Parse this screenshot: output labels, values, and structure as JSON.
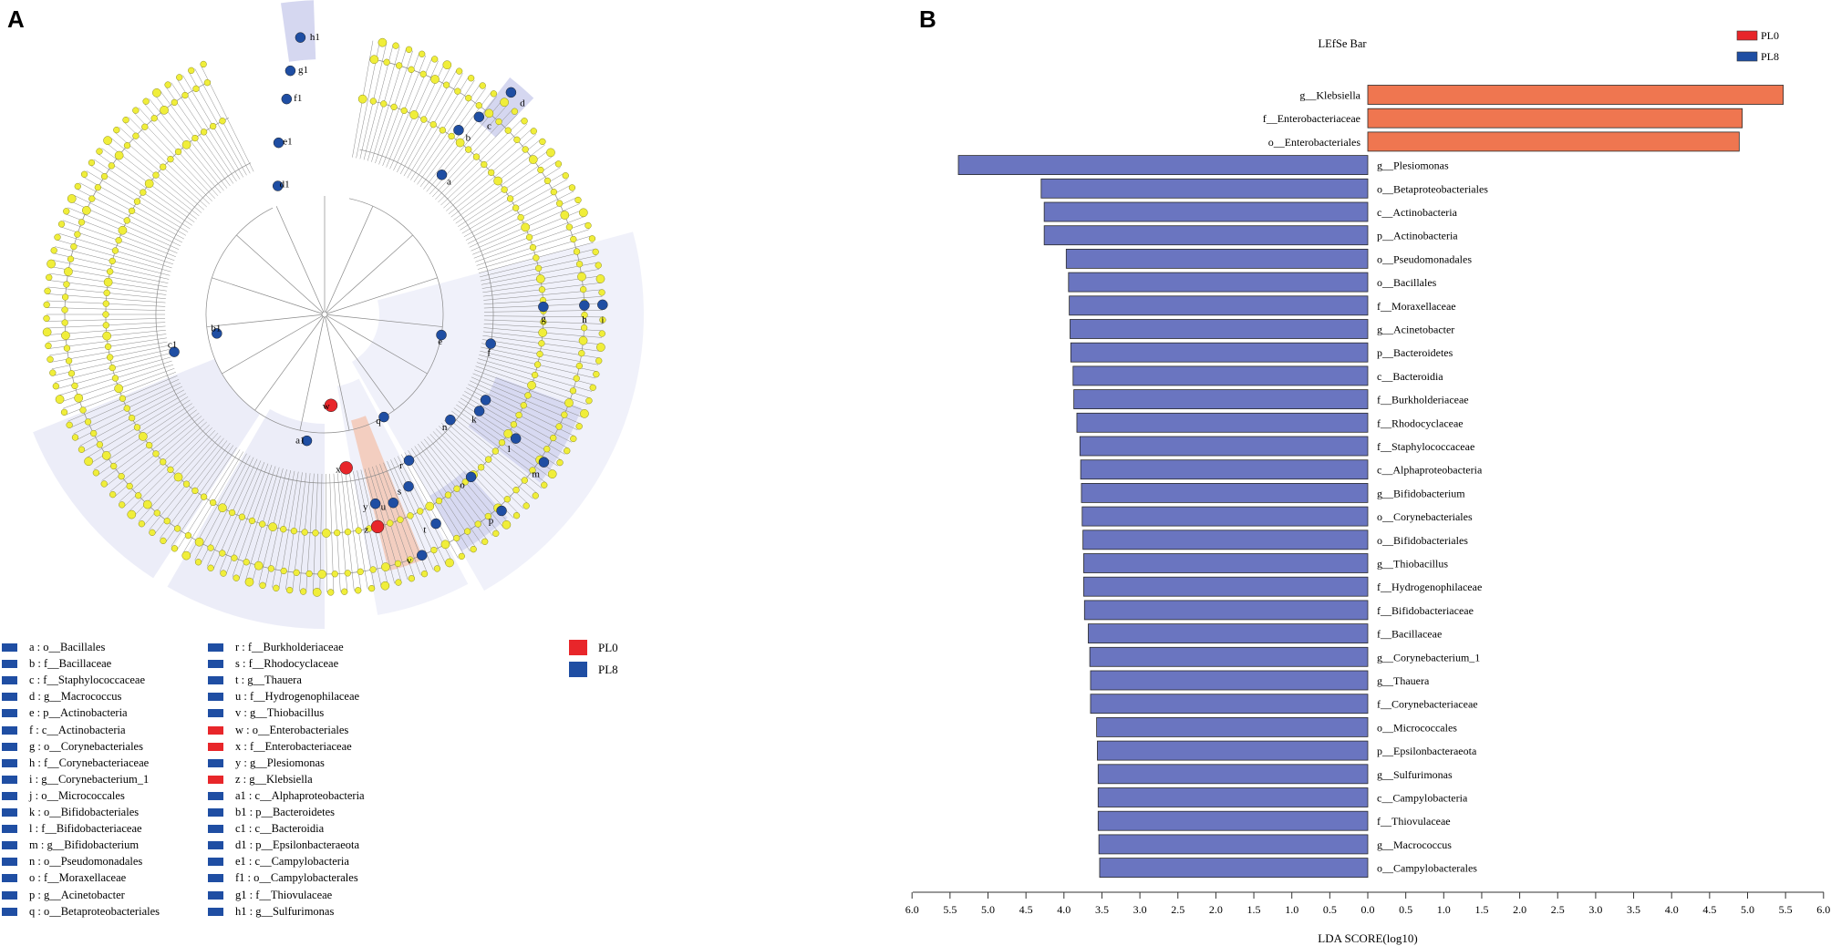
{
  "panel_a_label": "A",
  "panel_b_label": "B",
  "groups": [
    {
      "name": "PL0",
      "color": "#e8262a"
    },
    {
      "name": "PL8",
      "color": "#1f4ea3"
    }
  ],
  "cladogram": {
    "node_colors": {
      "default": "#f0ee3a",
      "PL0": "#e8262a",
      "PL8": "#1f4ea3"
    },
    "marked_nodes": [
      "a",
      "b",
      "c",
      "d",
      "e",
      "f",
      "g",
      "h",
      "i",
      "j",
      "k",
      "l",
      "m",
      "n",
      "o",
      "p",
      "q",
      "r",
      "s",
      "t",
      "u",
      "v",
      "w",
      "x",
      "y",
      "z",
      "a1",
      "b1",
      "c1",
      "d1",
      "e1",
      "f1",
      "g1",
      "h1"
    ]
  },
  "legend": [
    {
      "key": "a",
      "taxon": "o__Bacillales",
      "group": "PL8"
    },
    {
      "key": "b",
      "taxon": "f__Bacillaceae",
      "group": "PL8"
    },
    {
      "key": "c",
      "taxon": "f__Staphylococcaceae",
      "group": "PL8"
    },
    {
      "key": "d",
      "taxon": "g__Macrococcus",
      "group": "PL8"
    },
    {
      "key": "e",
      "taxon": "p__Actinobacteria",
      "group": "PL8"
    },
    {
      "key": "f",
      "taxon": "c__Actinobacteria",
      "group": "PL8"
    },
    {
      "key": "g",
      "taxon": "o__Corynebacteriales",
      "group": "PL8"
    },
    {
      "key": "h",
      "taxon": "f__Corynebacteriaceae",
      "group": "PL8"
    },
    {
      "key": "i",
      "taxon": "g__Corynebacterium_1",
      "group": "PL8"
    },
    {
      "key": "j",
      "taxon": "o__Micrococcales",
      "group": "PL8"
    },
    {
      "key": "k",
      "taxon": "o__Bifidobacteriales",
      "group": "PL8"
    },
    {
      "key": "l",
      "taxon": "f__Bifidobacteriaceae",
      "group": "PL8"
    },
    {
      "key": "m",
      "taxon": "g__Bifidobacterium",
      "group": "PL8"
    },
    {
      "key": "n",
      "taxon": "o__Pseudomonadales",
      "group": "PL8"
    },
    {
      "key": "o",
      "taxon": "f__Moraxellaceae",
      "group": "PL8"
    },
    {
      "key": "p",
      "taxon": "g__Acinetobacter",
      "group": "PL8"
    },
    {
      "key": "q",
      "taxon": "o__Betaproteobacteriales",
      "group": "PL8"
    },
    {
      "key": "r",
      "taxon": "f__Burkholderiaceae",
      "group": "PL8"
    },
    {
      "key": "s",
      "taxon": "f__Rhodocyclaceae",
      "group": "PL8"
    },
    {
      "key": "t",
      "taxon": "g__Thauera",
      "group": "PL8"
    },
    {
      "key": "u",
      "taxon": "f__Hydrogenophilaceae",
      "group": "PL8"
    },
    {
      "key": "v",
      "taxon": "g__Thiobacillus",
      "group": "PL8"
    },
    {
      "key": "w",
      "taxon": "o__Enterobacteriales",
      "group": "PL0"
    },
    {
      "key": "x",
      "taxon": "f__Enterobacteriaceae",
      "group": "PL0"
    },
    {
      "key": "y",
      "taxon": "g__Plesiomonas",
      "group": "PL8"
    },
    {
      "key": "z",
      "taxon": "g__Klebsiella",
      "group": "PL0"
    },
    {
      "key": "a1",
      "taxon": "c__Alphaproteobacteria",
      "group": "PL8"
    },
    {
      "key": "b1",
      "taxon": "p__Bacteroidetes",
      "group": "PL8"
    },
    {
      "key": "c1",
      "taxon": "c__Bacteroidia",
      "group": "PL8"
    },
    {
      "key": "d1",
      "taxon": "p__Epsilonbacteraeota",
      "group": "PL8"
    },
    {
      "key": "e1",
      "taxon": "c__Campylobacteria",
      "group": "PL8"
    },
    {
      "key": "f1",
      "taxon": "o__Campylobacterales",
      "group": "PL8"
    },
    {
      "key": "g1",
      "taxon": "f__Thiovulaceae",
      "group": "PL8"
    },
    {
      "key": "h1",
      "taxon": "g__Sulfurimonas",
      "group": "PL8"
    }
  ],
  "chart_data": {
    "type": "bar",
    "orientation": "horizontal",
    "title": "LEfSe Bar",
    "xlabel": "LDA SCORE(log10)",
    "xlim": [
      -6,
      6
    ],
    "xticks": [
      "6.0",
      "5.5",
      "5.0",
      "4.5",
      "4.0",
      "3.5",
      "3.0",
      "2.5",
      "2.0",
      "1.5",
      "1.0",
      "0.5",
      "0.0",
      "0.5",
      "1.0",
      "1.5",
      "2.0",
      "2.5",
      "3.0",
      "3.5",
      "4.0",
      "4.5",
      "5.0",
      "5.5",
      "6.0"
    ],
    "legend": [
      {
        "name": "PL0",
        "color": "#e8262a"
      },
      {
        "name": "PL8",
        "color": "#1f4ea3"
      }
    ],
    "bar_colors": {
      "PL0": "#ef7650",
      "PL8": "#6a75c0"
    },
    "bars": [
      {
        "label": "g__Klebsiella",
        "group": "PL0",
        "value": 5.47
      },
      {
        "label": "f__Enterobacteriaceae",
        "group": "PL0",
        "value": 4.93
      },
      {
        "label": "o__Enterobacteriales",
        "group": "PL0",
        "value": 4.89
      },
      {
        "label": "g__Plesiomonas",
        "group": "PL8",
        "value": 5.39
      },
      {
        "label": "o__Betaproteobacteriales",
        "group": "PL8",
        "value": 4.3
      },
      {
        "label": "c__Actinobacteria",
        "group": "PL8",
        "value": 4.26
      },
      {
        "label": "p__Actinobacteria",
        "group": "PL8",
        "value": 4.26
      },
      {
        "label": "o__Pseudomonadales",
        "group": "PL8",
        "value": 3.97
      },
      {
        "label": "o__Bacillales",
        "group": "PL8",
        "value": 3.94
      },
      {
        "label": "f__Moraxellaceae",
        "group": "PL8",
        "value": 3.93
      },
      {
        "label": "g__Acinetobacter",
        "group": "PL8",
        "value": 3.92
      },
      {
        "label": "p__Bacteroidetes",
        "group": "PL8",
        "value": 3.91
      },
      {
        "label": "c__Bacteroidia",
        "group": "PL8",
        "value": 3.88
      },
      {
        "label": "f__Burkholderiaceae",
        "group": "PL8",
        "value": 3.87
      },
      {
        "label": "f__Rhodocyclaceae",
        "group": "PL8",
        "value": 3.83
      },
      {
        "label": "f__Staphylococcaceae",
        "group": "PL8",
        "value": 3.79
      },
      {
        "label": "c__Alphaproteobacteria",
        "group": "PL8",
        "value": 3.78
      },
      {
        "label": "g__Bifidobacterium",
        "group": "PL8",
        "value": 3.77
      },
      {
        "label": "o__Corynebacteriales",
        "group": "PL8",
        "value": 3.76
      },
      {
        "label": "o__Bifidobacteriales",
        "group": "PL8",
        "value": 3.75
      },
      {
        "label": "g__Thiobacillus",
        "group": "PL8",
        "value": 3.74
      },
      {
        "label": "f__Hydrogenophilaceae",
        "group": "PL8",
        "value": 3.74
      },
      {
        "label": "f__Bifidobacteriaceae",
        "group": "PL8",
        "value": 3.73
      },
      {
        "label": "f__Bacillaceae",
        "group": "PL8",
        "value": 3.68
      },
      {
        "label": "g__Corynebacterium_1",
        "group": "PL8",
        "value": 3.66
      },
      {
        "label": "g__Thauera",
        "group": "PL8",
        "value": 3.65
      },
      {
        "label": "f__Corynebacteriaceae",
        "group": "PL8",
        "value": 3.65
      },
      {
        "label": "o__Micrococcales",
        "group": "PL8",
        "value": 3.57
      },
      {
        "label": "p__Epsilonbacteraeota",
        "group": "PL8",
        "value": 3.56
      },
      {
        "label": "g__Sulfurimonas",
        "group": "PL8",
        "value": 3.55
      },
      {
        "label": "c__Campylobacteria",
        "group": "PL8",
        "value": 3.55
      },
      {
        "label": "f__Thiovulaceae",
        "group": "PL8",
        "value": 3.55
      },
      {
        "label": "g__Macrococcus",
        "group": "PL8",
        "value": 3.54
      },
      {
        "label": "o__Campylobacterales",
        "group": "PL8",
        "value": 3.53
      }
    ]
  }
}
